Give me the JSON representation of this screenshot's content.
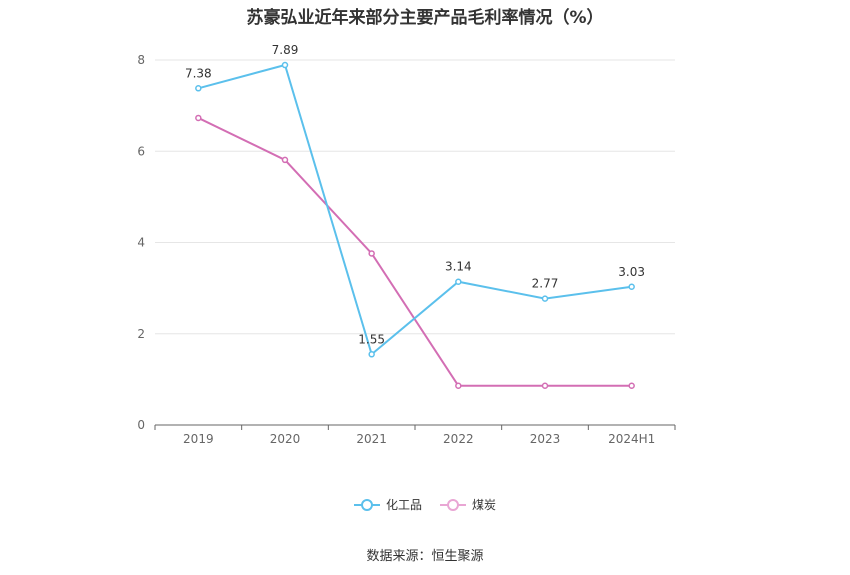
{
  "chart_data": {
    "type": "line",
    "title": "苏豪弘业近年来部分主要产品毛利率情况（%）",
    "categories": [
      "2019",
      "2020",
      "2021",
      "2022",
      "2023",
      "2024H1"
    ],
    "series": [
      {
        "name": "化工品",
        "color": "#5bc0ec",
        "values": [
          7.38,
          7.89,
          1.55,
          3.14,
          2.77,
          3.03
        ],
        "data_labels": [
          "7.38",
          "7.89",
          "1.55",
          "3.14",
          "2.77",
          "3.03"
        ]
      },
      {
        "name": "煤炭",
        "color": "#d36eb4",
        "values": [
          6.73,
          5.81,
          3.76,
          0.86,
          0.86,
          0.86
        ]
      }
    ],
    "y_ticks": [
      "0",
      "2",
      "4",
      "6",
      "8"
    ],
    "ylim": [
      0,
      8
    ],
    "grid": true,
    "legend_position": "bottom",
    "source": "数据来源：恒生聚源"
  }
}
